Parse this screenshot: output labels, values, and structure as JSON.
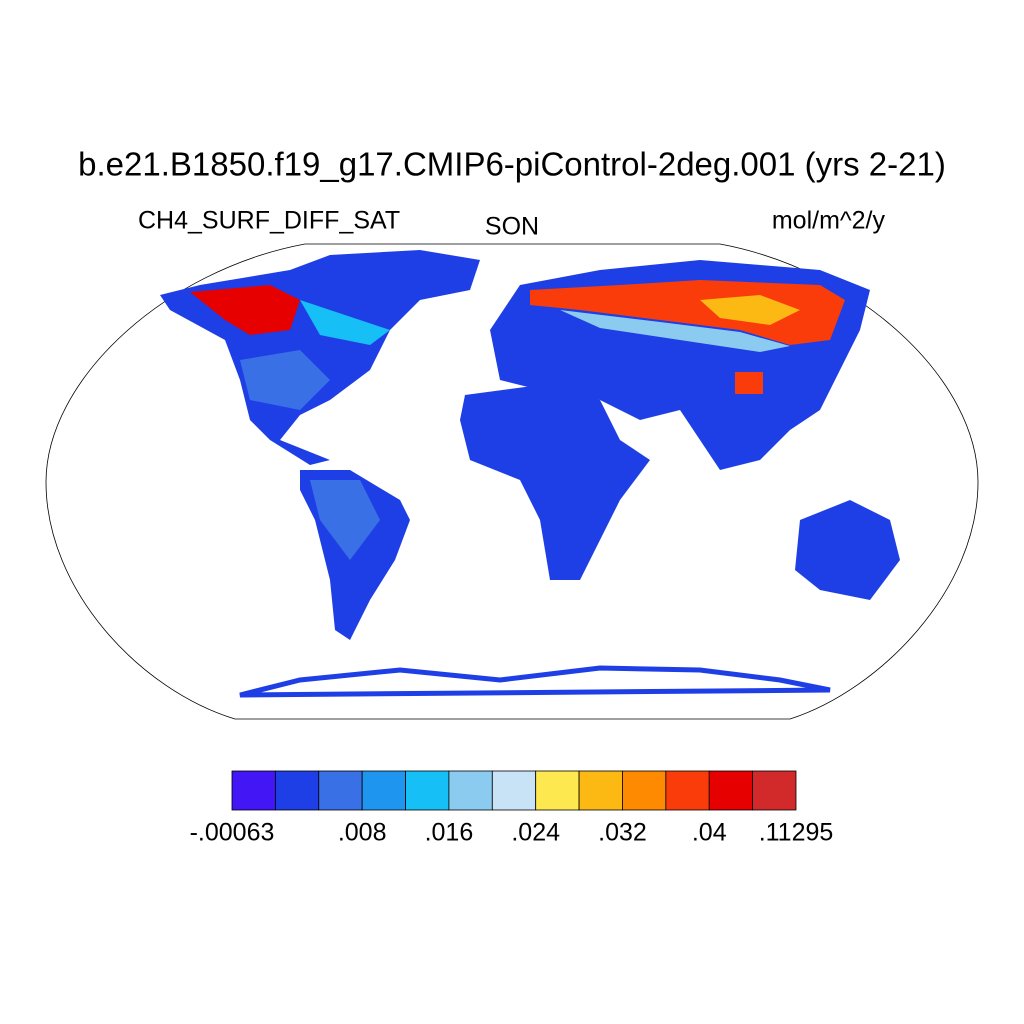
{
  "title": "b.e21.B1850.f19_g17.CMIP6-piControl-2deg.001 (yrs 2-21)",
  "left_string": "CH4_SURF_DIFF_SAT",
  "center_string": "SON",
  "right_string": "mol/m^2/y",
  "colorbar": {
    "colors": [
      "#4216f5",
      "#1f3fe6",
      "#3a70e6",
      "#1e96f0",
      "#17bff7",
      "#8ccbf0",
      "#c8e3f5",
      "#fde84f",
      "#fdb913",
      "#fd8a00",
      "#fa3c0a",
      "#e60000",
      "#d22a2a"
    ],
    "labels": [
      {
        "value": -0.00063,
        "label": "-.00063"
      },
      {
        "value": 0.008,
        "label": ".008"
      },
      {
        "value": 0.016,
        "label": ".016"
      },
      {
        "value": 0.024,
        "label": ".024"
      },
      {
        "value": 0.032,
        "label": ".032"
      },
      {
        "value": 0.04,
        "label": ".04"
      },
      {
        "value": 0.11295,
        "label": ".11295"
      }
    ]
  }
}
